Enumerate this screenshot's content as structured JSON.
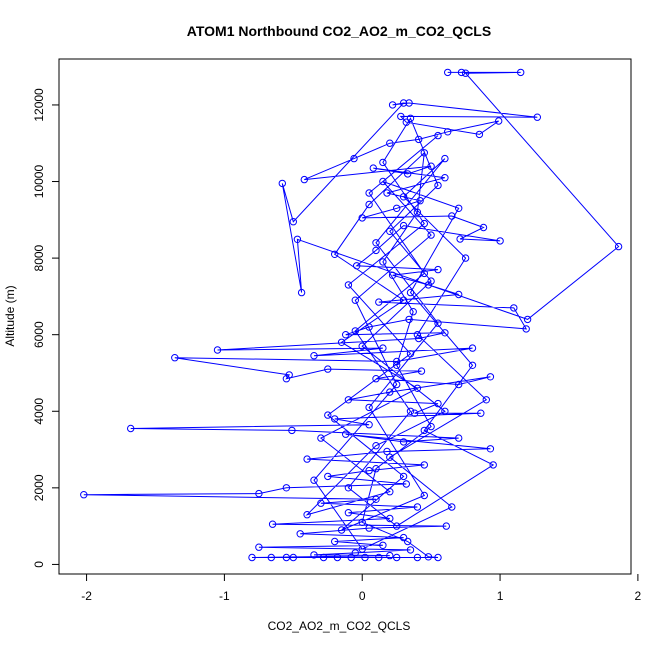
{
  "chart_data": {
    "type": "scatter",
    "title": "ATOM1 Northbound CO2_AO2_m_CO2_QCLS",
    "xlabel": "CO2_AO2_m_CO2_QCLS",
    "ylabel": "Altitude (m)",
    "xlim": [
      -2.2,
      1.95
    ],
    "ylim": [
      -250,
      13200
    ],
    "xticks": [
      -2,
      -1,
      0,
      1,
      2
    ],
    "yticks": [
      0,
      2000,
      4000,
      6000,
      8000,
      10000,
      12000
    ],
    "xtick_labels": [
      "-2",
      "-1",
      "0",
      "1",
      "2"
    ],
    "ytick_labels": [
      "0",
      "2000",
      "4000",
      "6000",
      "8000",
      "10000",
      "12000"
    ],
    "grid": false,
    "legend": "none",
    "connected": true,
    "series": [
      {
        "color": "#0000ff",
        "marker": "open-circle",
        "points": [
          [
            0.62,
            12850
          ],
          [
            0.72,
            12850
          ],
          [
            1.15,
            12850
          ],
          [
            0.75,
            12830
          ],
          [
            1.86,
            8300
          ],
          [
            1.2,
            6400
          ],
          [
            -0.47,
            8490
          ],
          [
            -0.44,
            7100
          ],
          [
            -0.58,
            9950
          ],
          [
            -0.5,
            8950
          ],
          [
            0.3,
            12050
          ],
          [
            0.22,
            12000
          ],
          [
            0.34,
            12050
          ],
          [
            1.27,
            11680
          ],
          [
            0.28,
            11700
          ],
          [
            0.32,
            11550
          ],
          [
            0.85,
            11230
          ],
          [
            0.99,
            11580
          ],
          [
            0.62,
            11300
          ],
          [
            0.41,
            11100
          ],
          [
            0.2,
            11000
          ],
          [
            -0.06,
            10600
          ],
          [
            -0.42,
            10050
          ],
          [
            0.5,
            10400
          ],
          [
            0.33,
            10200
          ],
          [
            0.08,
            10350
          ],
          [
            0.6,
            10100
          ],
          [
            0.18,
            9700
          ],
          [
            0.42,
            9500
          ],
          [
            0.25,
            9300
          ],
          [
            0.0,
            9050
          ],
          [
            0.65,
            9100
          ],
          [
            0.88,
            8800
          ],
          [
            0.71,
            8500
          ],
          [
            1.0,
            8450
          ],
          [
            0.3,
            8850
          ],
          [
            0.1,
            8200
          ],
          [
            -0.04,
            7800
          ],
          [
            0.55,
            7700
          ],
          [
            0.22,
            7550
          ],
          [
            0.48,
            7300
          ],
          [
            0.7,
            7050
          ],
          [
            0.12,
            6850
          ],
          [
            1.1,
            6700
          ],
          [
            1.19,
            6150
          ],
          [
            0.34,
            6400
          ],
          [
            0.05,
            6200
          ],
          [
            -0.12,
            6000
          ],
          [
            0.6,
            6050
          ],
          [
            0.41,
            5900
          ],
          [
            -1.05,
            5600
          ],
          [
            0.15,
            5650
          ],
          [
            -0.35,
            5450
          ],
          [
            0.8,
            5650
          ],
          [
            0.25,
            5300
          ],
          [
            -1.36,
            5400
          ],
          [
            -0.53,
            4950
          ],
          [
            -0.55,
            4850
          ],
          [
            -0.25,
            5100
          ],
          [
            0.43,
            5050
          ],
          [
            0.1,
            4850
          ],
          [
            0.7,
            4700
          ],
          [
            0.93,
            4900
          ],
          [
            0.2,
            4500
          ],
          [
            -0.1,
            4300
          ],
          [
            0.55,
            4200
          ],
          [
            0.38,
            3950
          ],
          [
            0.86,
            3950
          ],
          [
            -0.2,
            3800
          ],
          [
            0.05,
            3650
          ],
          [
            -1.68,
            3550
          ],
          [
            -0.51,
            3500
          ],
          [
            0.7,
            3300
          ],
          [
            0.3,
            3200
          ],
          [
            -0.12,
            3400
          ],
          [
            0.93,
            3020
          ],
          [
            0.18,
            2950
          ],
          [
            -0.4,
            2750
          ],
          [
            0.45,
            2600
          ],
          [
            0.05,
            2450
          ],
          [
            -0.25,
            2300
          ],
          [
            0.32,
            2100
          ],
          [
            -0.55,
            2000
          ],
          [
            -0.75,
            1850
          ],
          [
            -2.02,
            1820
          ],
          [
            0.1,
            1700
          ],
          [
            -0.3,
            1600
          ],
          [
            0.4,
            1500
          ],
          [
            -0.1,
            1350
          ],
          [
            0.2,
            1200
          ],
          [
            -0.65,
            1050
          ],
          [
            0.61,
            1000
          ],
          [
            0.05,
            950
          ],
          [
            -0.45,
            800
          ],
          [
            0.3,
            700
          ],
          [
            -0.2,
            600
          ],
          [
            0.15,
            500
          ],
          [
            -0.75,
            450
          ],
          [
            0.35,
            380
          ],
          [
            -0.05,
            300
          ],
          [
            -0.35,
            250
          ],
          [
            0.2,
            230
          ],
          [
            -0.8,
            180
          ],
          [
            -0.66,
            180
          ],
          [
            -0.55,
            180
          ],
          [
            -0.5,
            180
          ],
          [
            -0.28,
            180
          ],
          [
            -0.18,
            180
          ],
          [
            -0.08,
            180
          ],
          [
            0.02,
            180
          ],
          [
            0.12,
            180
          ],
          [
            0.25,
            180
          ],
          [
            0.4,
            180
          ],
          [
            0.55,
            180
          ],
          [
            0.48,
            200
          ],
          [
            0.33,
            600
          ],
          [
            0.0,
            1100
          ],
          [
            0.1,
            2500
          ],
          [
            0.5,
            3600
          ],
          [
            0.25,
            5200
          ],
          [
            0.37,
            6600
          ],
          [
            0.15,
            7900
          ],
          [
            0.4,
            9200
          ],
          [
            0.45,
            10750
          ],
          [
            0.05,
            9400
          ],
          [
            -0.2,
            8100
          ],
          [
            0.3,
            6900
          ],
          [
            -0.15,
            5800
          ],
          [
            0.4,
            4600
          ],
          [
            -0.3,
            3300
          ],
          [
            0.2,
            1900
          ],
          [
            -0.4,
            1300
          ],
          [
            0.1,
            3100
          ],
          [
            0.6,
            4000
          ],
          [
            0.0,
            5700
          ],
          [
            0.5,
            7400
          ],
          [
            0.2,
            8700
          ],
          [
            0.55,
            9900
          ],
          [
            0.35,
            11650
          ],
          [
            0.15,
            10500
          ],
          [
            0.45,
            8900
          ],
          [
            -0.1,
            7300
          ],
          [
            0.35,
            5500
          ],
          [
            -0.25,
            3900
          ],
          [
            0.3,
            2300
          ],
          [
            -0.15,
            900
          ],
          [
            0.45,
            1800
          ],
          [
            0.05,
            4100
          ],
          [
            0.55,
            6300
          ],
          [
            0.1,
            8400
          ],
          [
            0.6,
            10600
          ],
          [
            0.3,
            9600
          ],
          [
            0.75,
            8000
          ],
          [
            0.4,
            6000
          ],
          [
            0.9,
            4300
          ],
          [
            0.2,
            2800
          ],
          [
            0.65,
            1500
          ],
          [
            0.0,
            400
          ],
          [
            -0.35,
            2200
          ],
          [
            0.25,
            4700
          ],
          [
            -0.05,
            6900
          ],
          [
            0.5,
            8600
          ],
          [
            0.15,
            10000
          ],
          [
            0.7,
            9300
          ],
          [
            0.35,
            7100
          ],
          [
            0.8,
            5200
          ],
          [
            0.45,
            3500
          ],
          [
            0.95,
            2600
          ],
          [
            0.25,
            1000
          ],
          [
            -0.1,
            2000
          ],
          [
            0.35,
            4000
          ],
          [
            -0.05,
            6100
          ],
          [
            0.45,
            7600
          ],
          [
            0.05,
            9700
          ],
          [
            0.55,
            11200
          ]
        ]
      }
    ]
  }
}
